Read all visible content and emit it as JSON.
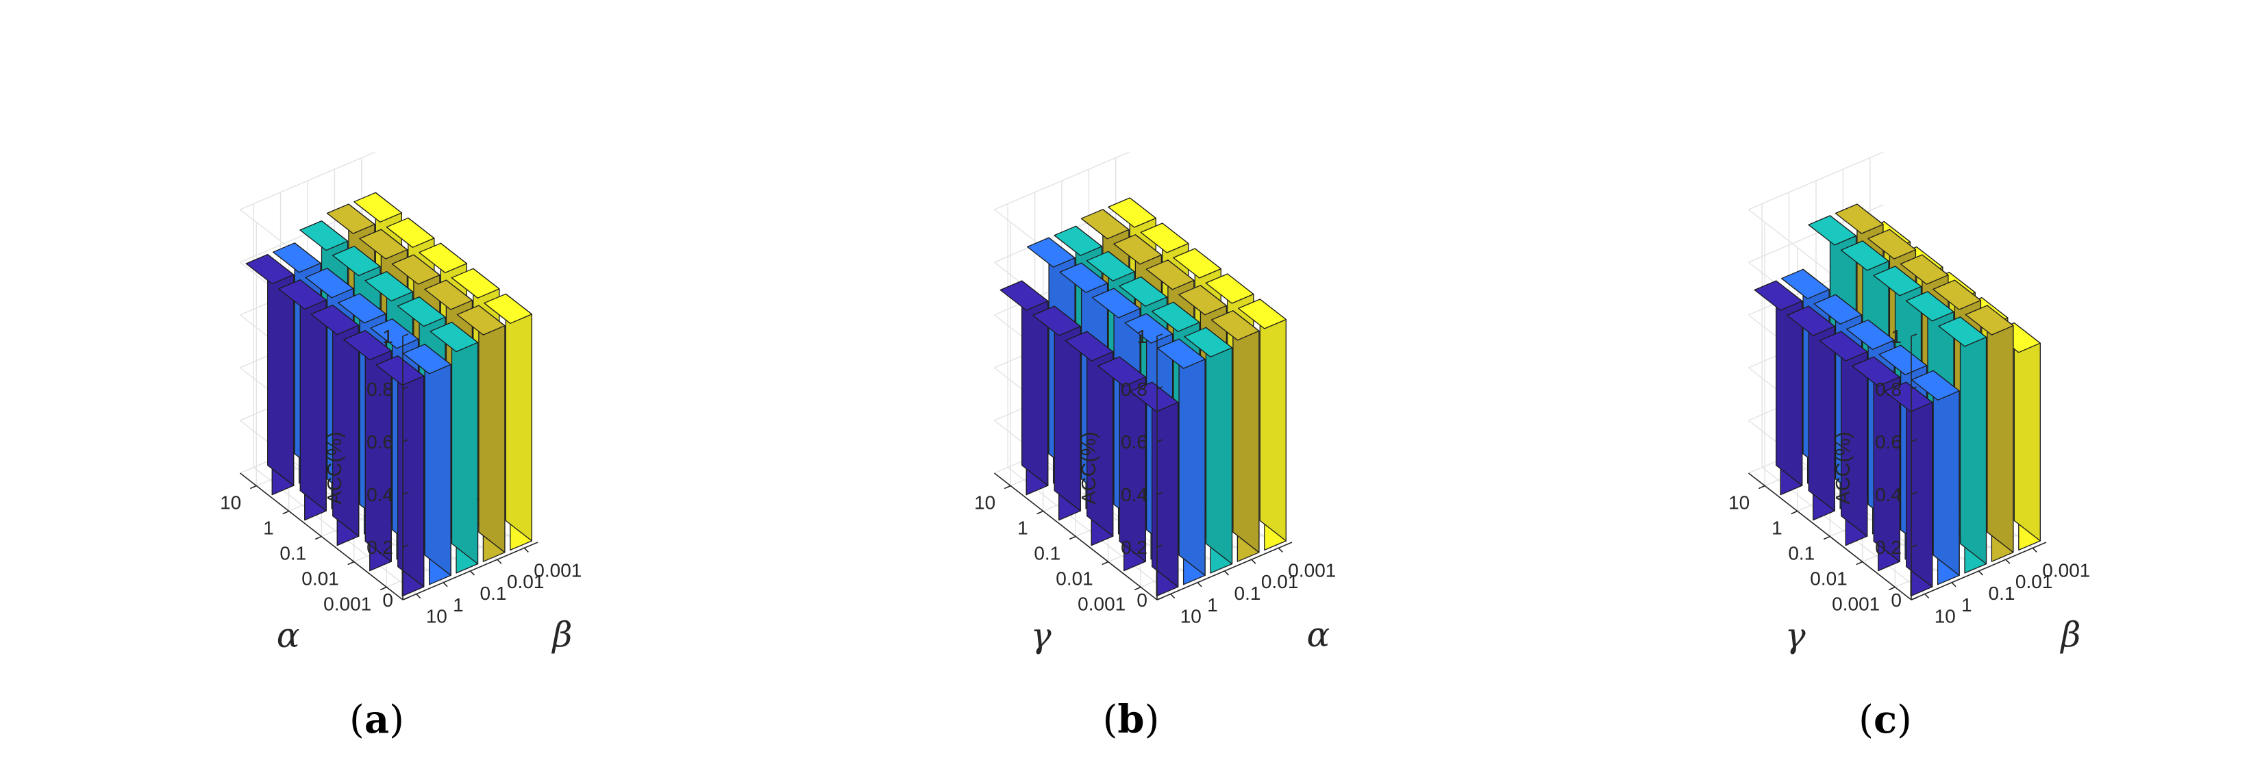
{
  "chart_data": [
    {
      "type": "bar3d",
      "caption_letter": "a",
      "zlabel": "ACC(%)",
      "zlim": [
        0,
        1
      ],
      "zticks": [
        "0",
        "0.2",
        "0.4",
        "0.6",
        "0.8",
        "1"
      ],
      "row_axis_label": "α",
      "col_axis_label": "β",
      "row_categories": [
        "10",
        "1",
        "0.1",
        "0.01",
        "0.001"
      ],
      "col_categories": [
        "10",
        "1",
        "0.1",
        "0.01",
        "0.001"
      ],
      "grid": true,
      "values": [
        [
          0.8,
          0.8,
          0.84,
          0.86,
          0.86
        ],
        [
          0.8,
          0.8,
          0.84,
          0.86,
          0.86
        ],
        [
          0.8,
          0.8,
          0.84,
          0.86,
          0.86
        ],
        [
          0.8,
          0.8,
          0.84,
          0.86,
          0.86
        ],
        [
          0.8,
          0.8,
          0.84,
          0.86,
          0.86
        ]
      ]
    },
    {
      "type": "bar3d",
      "caption_letter": "b",
      "zlabel": "ACC(%)",
      "zlim": [
        0,
        1
      ],
      "zticks": [
        "0",
        "0.2",
        "0.4",
        "0.6",
        "0.8",
        "1"
      ],
      "row_axis_label": "γ",
      "col_axis_label": "α",
      "row_categories": [
        "10",
        "1",
        "0.1",
        "0.01",
        "0.001"
      ],
      "col_categories": [
        "10",
        "1",
        "0.1",
        "0.01",
        "0.001"
      ],
      "grid": true,
      "values": [
        [
          0.7,
          0.82,
          0.82,
          0.84,
          0.84
        ],
        [
          0.7,
          0.82,
          0.82,
          0.84,
          0.84
        ],
        [
          0.7,
          0.82,
          0.82,
          0.84,
          0.84
        ],
        [
          0.7,
          0.82,
          0.82,
          0.84,
          0.84
        ],
        [
          0.7,
          0.82,
          0.82,
          0.84,
          0.84
        ]
      ]
    },
    {
      "type": "bar3d",
      "caption_letter": "c",
      "zlabel": "ACC(%)",
      "zlim": [
        0,
        1
      ],
      "zticks": [
        "0",
        "0.2",
        "0.4",
        "0.6",
        "0.8",
        "1"
      ],
      "row_axis_label": "γ",
      "col_axis_label": "β",
      "row_categories": [
        "10",
        "1",
        "0.1",
        "0.01",
        "0.001"
      ],
      "col_categories": [
        "10",
        "1",
        "0.1",
        "0.01",
        "0.001"
      ],
      "grid": true,
      "values": [
        [
          0.7,
          0.7,
          0.86,
          0.86,
          0.75
        ],
        [
          0.7,
          0.7,
          0.86,
          0.86,
          0.75
        ],
        [
          0.7,
          0.7,
          0.86,
          0.86,
          0.75
        ],
        [
          0.7,
          0.7,
          0.86,
          0.86,
          0.75
        ],
        [
          0.7,
          0.7,
          0.86,
          0.86,
          0.75
        ]
      ]
    }
  ],
  "series_colors": [
    "#3d27b0",
    "#3078fb",
    "#19c0b8",
    "#c8b62c",
    "#fbf826"
  ]
}
